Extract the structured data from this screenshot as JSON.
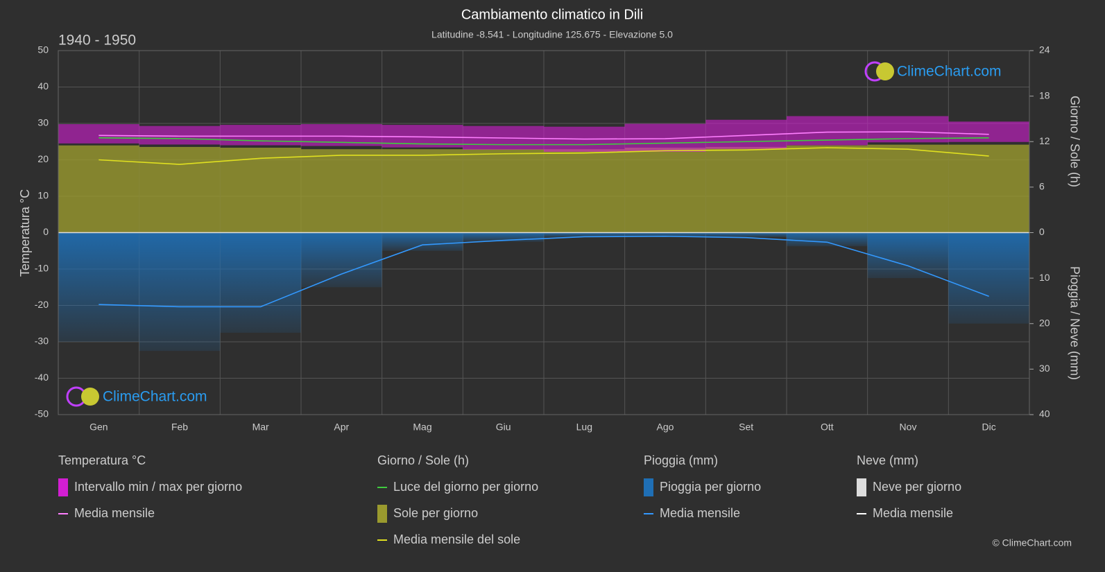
{
  "title": "Cambiamento climatico in Dili",
  "subtitle": "Latitudine -8.541 - Longitudine 125.675 - Elevazione 5.0",
  "period": "1940 - 1950",
  "watermark": "ClimeChart.com",
  "copyright": "© ClimeChart.com",
  "chart_data": {
    "type": "climate",
    "categories": [
      "Gen",
      "Feb",
      "Mar",
      "Apr",
      "Mag",
      "Giu",
      "Lug",
      "Ago",
      "Set",
      "Ott",
      "Nov",
      "Dic"
    ],
    "y_label": "Temperatura °C",
    "y2_label_top": "Giorno / Sole (h)",
    "y2_label_bottom": "Pioggia / Neve (mm)",
    "ylim": [
      -50,
      50
    ],
    "yticks": [
      -50,
      -40,
      -30,
      -20,
      -10,
      0,
      10,
      20,
      30,
      40,
      50
    ],
    "sun_lim": [
      0,
      24
    ],
    "sun_ticks": [
      0,
      6,
      12,
      18,
      24
    ],
    "rain_lim": [
      0,
      40
    ],
    "rain_ticks": [
      10,
      20,
      30,
      40
    ],
    "grid": true,
    "groups": [
      {
        "title": "Temperatura °C",
        "series": [
          {
            "name": "Intervallo min / max per giorno",
            "color": "#d21ed2",
            "low": [
              24.5,
              24.2,
              24.0,
              23.8,
              23.4,
              22.8,
              22.2,
              22.2,
              23.0,
              24.0,
              24.8,
              24.9
            ],
            "high": [
              29.8,
              29.3,
              29.6,
              29.8,
              29.6,
              29.3,
              29.1,
              29.9,
              31.0,
              32.0,
              32.0,
              30.5
            ]
          },
          {
            "name": "Media mensile",
            "color": "#ff7fff",
            "values": [
              26.7,
              26.5,
              26.5,
              26.5,
              26.3,
              26.0,
              25.7,
              25.8,
              26.7,
              27.6,
              27.7,
              27.0
            ]
          }
        ]
      },
      {
        "title": "Giorno / Sole (h)",
        "series": [
          {
            "name": "Luce del giorno per giorno",
            "color": "#3fcc3f",
            "values": [
              12.5,
              12.4,
              12.1,
              11.9,
              11.7,
              11.6,
              11.6,
              11.8,
              12.0,
              12.2,
              12.4,
              12.5
            ]
          },
          {
            "name": "Sole per giorno",
            "color": "#9a9a2e",
            "values": [
              11.5,
              11.3,
              11.2,
              11.0,
              11.0,
              11.0,
              11.0,
              11.2,
              11.3,
              11.5,
              11.6,
              11.6
            ]
          },
          {
            "name": "Media mensile del sole",
            "color": "#e0e020",
            "values": [
              9.6,
              9.0,
              9.8,
              10.2,
              10.2,
              10.4,
              10.5,
              10.8,
              10.9,
              11.2,
              11.0,
              10.1
            ]
          }
        ]
      },
      {
        "title": "Pioggia (mm)",
        "series": [
          {
            "name": "Pioggia per giorno",
            "color": "#1f6fb5",
            "values": [
              24,
              26,
              22,
              12,
              4,
              2,
              1,
              1,
              1,
              3,
              10,
              20
            ]
          },
          {
            "name": "Media mensile",
            "color": "#3399ff",
            "values": [
              15.8,
              16.3,
              16.3,
              9.1,
              2.7,
              1.7,
              0.9,
              0.8,
              1.1,
              2.1,
              7.3,
              14.0
            ]
          }
        ]
      },
      {
        "title": "Neve (mm)",
        "series": [
          {
            "name": "Neve per giorno",
            "color": "#dddddd"
          },
          {
            "name": "Media mensile",
            "color": "#ffffff"
          }
        ]
      }
    ]
  }
}
